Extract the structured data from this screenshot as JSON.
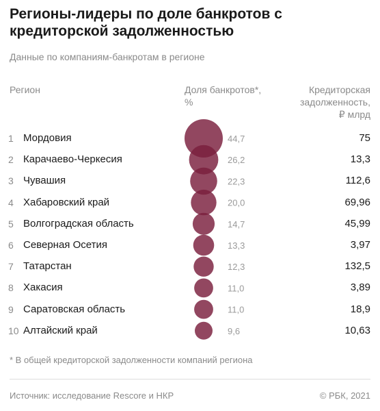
{
  "title": "Регионы-лидеры по доле банкротов с кредиторской задолженностью",
  "subtitle": "Данные по компаниям-банкротам в регионе",
  "headers": {
    "region": "Регион",
    "share": [
      "Доля банкротов*,",
      "%"
    ],
    "debt": [
      "Кредиторская",
      "задолженность,",
      "₽ млрд"
    ]
  },
  "colors": {
    "bubble": "#7a1f3d"
  },
  "chart_data": {
    "type": "table",
    "columns": [
      "Регион",
      "Доля банкротов*, %",
      "Кредиторская задолженность, ₽ млрд"
    ],
    "rows": [
      {
        "rank": "1",
        "region": "Мордовия",
        "share": 44.7,
        "share_label": "44,7",
        "debt": "75"
      },
      {
        "rank": "2",
        "region": "Карачаево-Черкесия",
        "share": 26.2,
        "share_label": "26,2",
        "debt": "13,3"
      },
      {
        "rank": "3",
        "region": "Чувашия",
        "share": 22.3,
        "share_label": "22,3",
        "debt": "112,6"
      },
      {
        "rank": "4",
        "region": "Хабаровский край",
        "share": 20.0,
        "share_label": "20,0",
        "debt": "69,96"
      },
      {
        "rank": "5",
        "region": "Волгоградская область",
        "share": 14.7,
        "share_label": "14,7",
        "debt": "45,99"
      },
      {
        "rank": "6",
        "region": "Северная Осетия",
        "share": 13.3,
        "share_label": "13,3",
        "debt": "3,97"
      },
      {
        "rank": "7",
        "region": "Татарстан",
        "share": 12.3,
        "share_label": "12,3",
        "debt": "132,5"
      },
      {
        "rank": "8",
        "region": "Хакасия",
        "share": 11.0,
        "share_label": "11,0",
        "debt": "3,89"
      },
      {
        "rank": "9",
        "region": "Саратовская область",
        "share": 11.0,
        "share_label": "11,0",
        "debt": "18,9"
      },
      {
        "rank": "10",
        "region": "Алтайский край",
        "share": 9.6,
        "share_label": "9,6",
        "debt": "10,63"
      }
    ]
  },
  "footnote": "* В общей кредиторской задолженности компаний региона",
  "source": "Источник: исследование Rescore и НКР",
  "copyright": "© РБК, 2021"
}
